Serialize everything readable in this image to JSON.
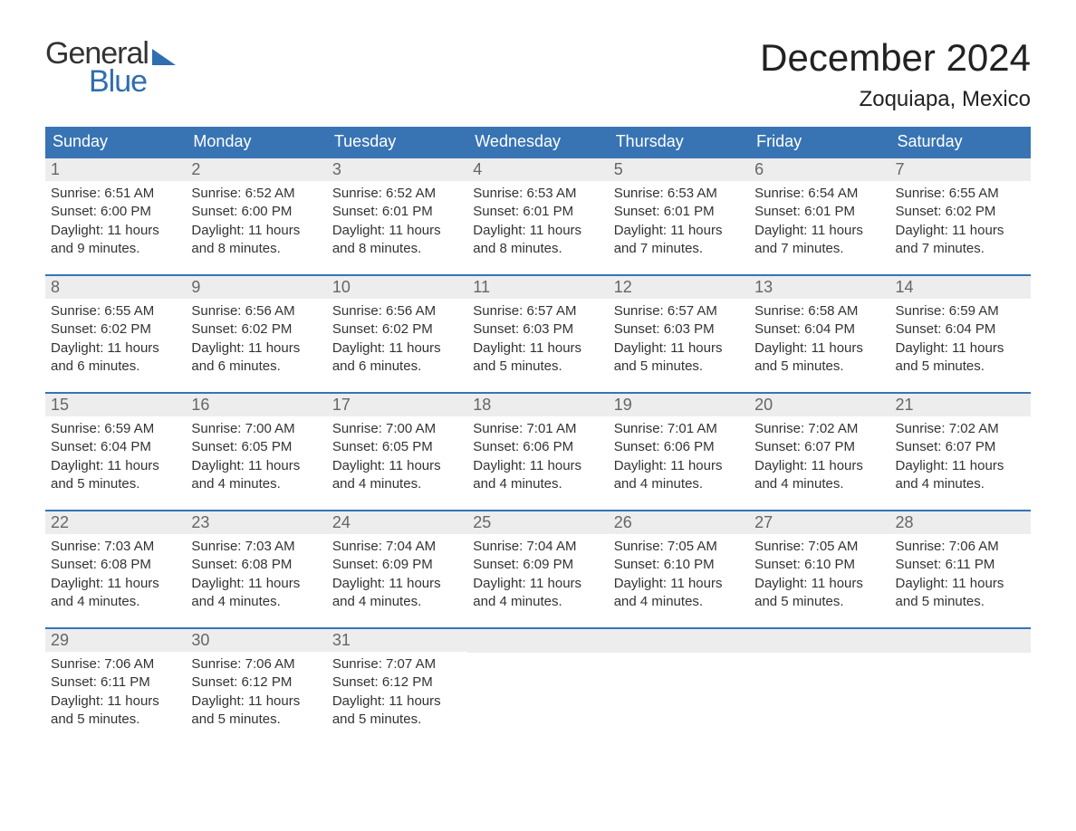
{
  "branding": {
    "word1": "General",
    "word2": "Blue",
    "accent_color": "#2f6eaf"
  },
  "title": {
    "month_year": "December 2024",
    "location": "Zoquiapa, Mexico"
  },
  "colors": {
    "header_bg": "#3874b4",
    "header_text": "#ffffff",
    "date_bar_bg": "#ededed",
    "date_text": "#666666",
    "body_text": "#333333",
    "week_border": "#3874b4",
    "page_bg": "#ffffff"
  },
  "day_names": [
    "Sunday",
    "Monday",
    "Tuesday",
    "Wednesday",
    "Thursday",
    "Friday",
    "Saturday"
  ],
  "weeks": [
    [
      {
        "date": "1",
        "sunrise": "Sunrise: 6:51 AM",
        "sunset": "Sunset: 6:00 PM",
        "daylight": "Daylight: 11 hours and 9 minutes."
      },
      {
        "date": "2",
        "sunrise": "Sunrise: 6:52 AM",
        "sunset": "Sunset: 6:00 PM",
        "daylight": "Daylight: 11 hours and 8 minutes."
      },
      {
        "date": "3",
        "sunrise": "Sunrise: 6:52 AM",
        "sunset": "Sunset: 6:01 PM",
        "daylight": "Daylight: 11 hours and 8 minutes."
      },
      {
        "date": "4",
        "sunrise": "Sunrise: 6:53 AM",
        "sunset": "Sunset: 6:01 PM",
        "daylight": "Daylight: 11 hours and 8 minutes."
      },
      {
        "date": "5",
        "sunrise": "Sunrise: 6:53 AM",
        "sunset": "Sunset: 6:01 PM",
        "daylight": "Daylight: 11 hours and 7 minutes."
      },
      {
        "date": "6",
        "sunrise": "Sunrise: 6:54 AM",
        "sunset": "Sunset: 6:01 PM",
        "daylight": "Daylight: 11 hours and 7 minutes."
      },
      {
        "date": "7",
        "sunrise": "Sunrise: 6:55 AM",
        "sunset": "Sunset: 6:02 PM",
        "daylight": "Daylight: 11 hours and 7 minutes."
      }
    ],
    [
      {
        "date": "8",
        "sunrise": "Sunrise: 6:55 AM",
        "sunset": "Sunset: 6:02 PM",
        "daylight": "Daylight: 11 hours and 6 minutes."
      },
      {
        "date": "9",
        "sunrise": "Sunrise: 6:56 AM",
        "sunset": "Sunset: 6:02 PM",
        "daylight": "Daylight: 11 hours and 6 minutes."
      },
      {
        "date": "10",
        "sunrise": "Sunrise: 6:56 AM",
        "sunset": "Sunset: 6:02 PM",
        "daylight": "Daylight: 11 hours and 6 minutes."
      },
      {
        "date": "11",
        "sunrise": "Sunrise: 6:57 AM",
        "sunset": "Sunset: 6:03 PM",
        "daylight": "Daylight: 11 hours and 5 minutes."
      },
      {
        "date": "12",
        "sunrise": "Sunrise: 6:57 AM",
        "sunset": "Sunset: 6:03 PM",
        "daylight": "Daylight: 11 hours and 5 minutes."
      },
      {
        "date": "13",
        "sunrise": "Sunrise: 6:58 AM",
        "sunset": "Sunset: 6:04 PM",
        "daylight": "Daylight: 11 hours and 5 minutes."
      },
      {
        "date": "14",
        "sunrise": "Sunrise: 6:59 AM",
        "sunset": "Sunset: 6:04 PM",
        "daylight": "Daylight: 11 hours and 5 minutes."
      }
    ],
    [
      {
        "date": "15",
        "sunrise": "Sunrise: 6:59 AM",
        "sunset": "Sunset: 6:04 PM",
        "daylight": "Daylight: 11 hours and 5 minutes."
      },
      {
        "date": "16",
        "sunrise": "Sunrise: 7:00 AM",
        "sunset": "Sunset: 6:05 PM",
        "daylight": "Daylight: 11 hours and 4 minutes."
      },
      {
        "date": "17",
        "sunrise": "Sunrise: 7:00 AM",
        "sunset": "Sunset: 6:05 PM",
        "daylight": "Daylight: 11 hours and 4 minutes."
      },
      {
        "date": "18",
        "sunrise": "Sunrise: 7:01 AM",
        "sunset": "Sunset: 6:06 PM",
        "daylight": "Daylight: 11 hours and 4 minutes."
      },
      {
        "date": "19",
        "sunrise": "Sunrise: 7:01 AM",
        "sunset": "Sunset: 6:06 PM",
        "daylight": "Daylight: 11 hours and 4 minutes."
      },
      {
        "date": "20",
        "sunrise": "Sunrise: 7:02 AM",
        "sunset": "Sunset: 6:07 PM",
        "daylight": "Daylight: 11 hours and 4 minutes."
      },
      {
        "date": "21",
        "sunrise": "Sunrise: 7:02 AM",
        "sunset": "Sunset: 6:07 PM",
        "daylight": "Daylight: 11 hours and 4 minutes."
      }
    ],
    [
      {
        "date": "22",
        "sunrise": "Sunrise: 7:03 AM",
        "sunset": "Sunset: 6:08 PM",
        "daylight": "Daylight: 11 hours and 4 minutes."
      },
      {
        "date": "23",
        "sunrise": "Sunrise: 7:03 AM",
        "sunset": "Sunset: 6:08 PM",
        "daylight": "Daylight: 11 hours and 4 minutes."
      },
      {
        "date": "24",
        "sunrise": "Sunrise: 7:04 AM",
        "sunset": "Sunset: 6:09 PM",
        "daylight": "Daylight: 11 hours and 4 minutes."
      },
      {
        "date": "25",
        "sunrise": "Sunrise: 7:04 AM",
        "sunset": "Sunset: 6:09 PM",
        "daylight": "Daylight: 11 hours and 4 minutes."
      },
      {
        "date": "26",
        "sunrise": "Sunrise: 7:05 AM",
        "sunset": "Sunset: 6:10 PM",
        "daylight": "Daylight: 11 hours and 4 minutes."
      },
      {
        "date": "27",
        "sunrise": "Sunrise: 7:05 AM",
        "sunset": "Sunset: 6:10 PM",
        "daylight": "Daylight: 11 hours and 5 minutes."
      },
      {
        "date": "28",
        "sunrise": "Sunrise: 7:06 AM",
        "sunset": "Sunset: 6:11 PM",
        "daylight": "Daylight: 11 hours and 5 minutes."
      }
    ],
    [
      {
        "date": "29",
        "sunrise": "Sunrise: 7:06 AM",
        "sunset": "Sunset: 6:11 PM",
        "daylight": "Daylight: 11 hours and 5 minutes."
      },
      {
        "date": "30",
        "sunrise": "Sunrise: 7:06 AM",
        "sunset": "Sunset: 6:12 PM",
        "daylight": "Daylight: 11 hours and 5 minutes."
      },
      {
        "date": "31",
        "sunrise": "Sunrise: 7:07 AM",
        "sunset": "Sunset: 6:12 PM",
        "daylight": "Daylight: 11 hours and 5 minutes."
      },
      null,
      null,
      null,
      null
    ]
  ]
}
